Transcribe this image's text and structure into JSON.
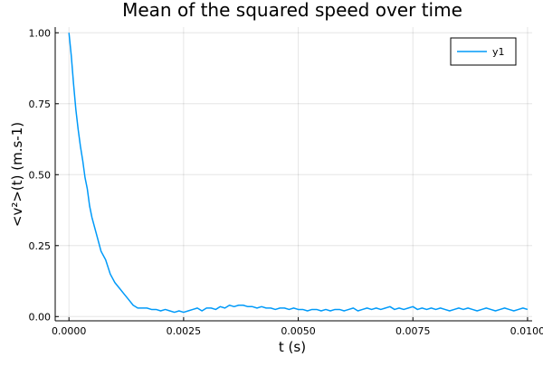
{
  "chart_data": {
    "type": "line",
    "title": "Mean of the squared speed over time",
    "xlabel": "t (s)",
    "ylabel": "<v²>(t) (m.s-1)",
    "xlim": [
      -0.0003,
      0.0101
    ],
    "ylim": [
      -0.015,
      1.02
    ],
    "xticks": [
      0,
      0.0025,
      0.005,
      0.0075,
      0.01
    ],
    "xtick_labels": [
      "0.0000",
      "0.0025",
      "0.0050",
      "0.0075",
      "0.0100"
    ],
    "yticks": [
      0,
      0.25,
      0.5,
      0.75,
      1.0
    ],
    "ytick_labels": [
      "0.00",
      "0.25",
      "0.50",
      "0.75",
      "1.00"
    ],
    "grid": true,
    "legend_position": "top-right",
    "series": [
      {
        "name": "y1",
        "color": "#009af9",
        "x": [
          0.0,
          5e-05,
          0.0001,
          0.00015,
          0.0002,
          0.00025,
          0.0003,
          0.00035,
          0.0004,
          0.00045,
          0.0005,
          0.0006,
          0.0007,
          0.0008,
          0.0009,
          0.001,
          0.0011,
          0.0012,
          0.0013,
          0.0014,
          0.0015,
          0.0016,
          0.0017,
          0.0018,
          0.0019,
          0.002,
          0.0021,
          0.0022,
          0.0023,
          0.0024,
          0.0025,
          0.0026,
          0.0027,
          0.0028,
          0.0029,
          0.003,
          0.0031,
          0.0032,
          0.0033,
          0.0034,
          0.0035,
          0.0036,
          0.0037,
          0.0038,
          0.0039,
          0.004,
          0.0041,
          0.0042,
          0.0043,
          0.0044,
          0.0045,
          0.0046,
          0.0047,
          0.0048,
          0.0049,
          0.005,
          0.0051,
          0.0052,
          0.0053,
          0.0054,
          0.0055,
          0.0056,
          0.0057,
          0.0058,
          0.0059,
          0.006,
          0.0061,
          0.0062,
          0.0063,
          0.0064,
          0.0065,
          0.0066,
          0.0067,
          0.0068,
          0.0069,
          0.007,
          0.0071,
          0.0072,
          0.0073,
          0.0074,
          0.0075,
          0.0076,
          0.0077,
          0.0078,
          0.0079,
          0.008,
          0.0081,
          0.0082,
          0.0083,
          0.0084,
          0.0085,
          0.0086,
          0.0087,
          0.0088,
          0.0089,
          0.009,
          0.0091,
          0.0092,
          0.0093,
          0.0094,
          0.0095,
          0.0096,
          0.0097,
          0.0098,
          0.0099,
          0.01
        ],
        "y": [
          1.0,
          0.92,
          0.82,
          0.73,
          0.66,
          0.6,
          0.55,
          0.49,
          0.45,
          0.39,
          0.35,
          0.29,
          0.23,
          0.2,
          0.15,
          0.12,
          0.1,
          0.08,
          0.06,
          0.04,
          0.03,
          0.03,
          0.03,
          0.025,
          0.025,
          0.02,
          0.025,
          0.02,
          0.015,
          0.02,
          0.015,
          0.02,
          0.025,
          0.03,
          0.02,
          0.03,
          0.03,
          0.025,
          0.035,
          0.03,
          0.04,
          0.035,
          0.04,
          0.04,
          0.035,
          0.035,
          0.03,
          0.035,
          0.03,
          0.03,
          0.025,
          0.03,
          0.03,
          0.025,
          0.03,
          0.025,
          0.025,
          0.02,
          0.025,
          0.025,
          0.02,
          0.025,
          0.02,
          0.025,
          0.025,
          0.02,
          0.025,
          0.03,
          0.02,
          0.025,
          0.03,
          0.025,
          0.03,
          0.025,
          0.03,
          0.035,
          0.025,
          0.03,
          0.025,
          0.03,
          0.035,
          0.025,
          0.03,
          0.025,
          0.03,
          0.025,
          0.03,
          0.025,
          0.02,
          0.025,
          0.03,
          0.025,
          0.03,
          0.025,
          0.02,
          0.025,
          0.03,
          0.025,
          0.02,
          0.025,
          0.03,
          0.025,
          0.02,
          0.025,
          0.03,
          0.025
        ]
      }
    ]
  }
}
